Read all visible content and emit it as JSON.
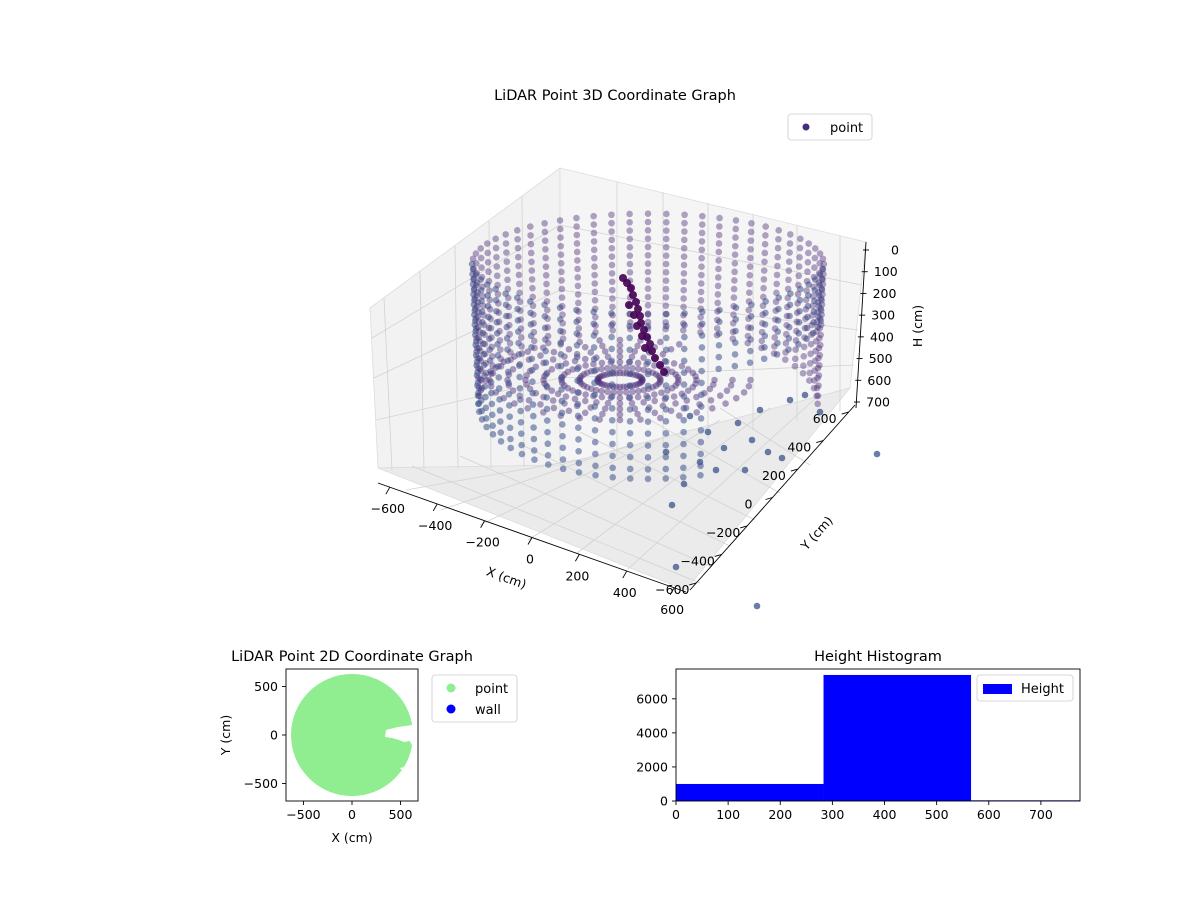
{
  "figure": {
    "background": "#ffffff"
  },
  "chart_data": [
    {
      "type": "scatter",
      "subtype": "3d",
      "title": "LiDAR Point 3D Coordinate Graph",
      "xlabel": "X (cm)",
      "ylabel": "Y (cm)",
      "zlabel": "H (cm)",
      "x_ticks": [
        "−600",
        "−400",
        "−200",
        "0",
        "200",
        "400",
        "600"
      ],
      "y_ticks": [
        "−600",
        "−400",
        "−200",
        "0",
        "200",
        "400",
        "600"
      ],
      "z_ticks": [
        "0",
        "100",
        "200",
        "300",
        "400",
        "500",
        "600",
        "700"
      ],
      "xlim": [
        -650,
        650
      ],
      "ylim": [
        -650,
        650
      ],
      "zlim": [
        0,
        780
      ],
      "z_inverted": true,
      "legend": [
        {
          "label": "point",
          "color": "#472d7b"
        }
      ],
      "legend_position": "upper-right",
      "grid": true,
      "colors": {
        "dark": "#440154",
        "mid": "#482878",
        "light": "#3b528b"
      },
      "wall_radius_cm": 600,
      "wall_height_range_cm": [
        0,
        700
      ],
      "floor_height_cm": 780
    },
    {
      "type": "scatter",
      "title": "LiDAR Point 2D Coordinate Graph",
      "xlabel": "X (cm)",
      "ylabel": "Y (cm)",
      "x_ticks": [
        "−500",
        "0",
        "500"
      ],
      "y_ticks": [
        "500",
        "0",
        "−500"
      ],
      "xlim": [
        -680,
        680
      ],
      "ylim": [
        -680,
        680
      ],
      "series": [
        {
          "name": "point",
          "color": "#90ee90"
        },
        {
          "name": "wall",
          "color": "#0000ff"
        }
      ],
      "legend_position": "outside-right"
    },
    {
      "type": "bar",
      "subtype": "histogram",
      "title": "Height Histogram",
      "x_ticks": [
        "0",
        "100",
        "200",
        "300",
        "400",
        "500",
        "600",
        "700"
      ],
      "y_ticks": [
        "0",
        "2000",
        "4000",
        "6000"
      ],
      "xlim": [
        0,
        775
      ],
      "ylim": [
        0,
        7750
      ],
      "bins": [
        {
          "start": 0,
          "end": 283,
          "count": 1000
        },
        {
          "start": 283,
          "end": 566,
          "count": 7400
        },
        {
          "start": 566,
          "end": 775,
          "count": 40
        }
      ],
      "series": [
        {
          "name": "Height",
          "color": "#0000ff"
        }
      ],
      "legend_position": "upper-right"
    }
  ]
}
